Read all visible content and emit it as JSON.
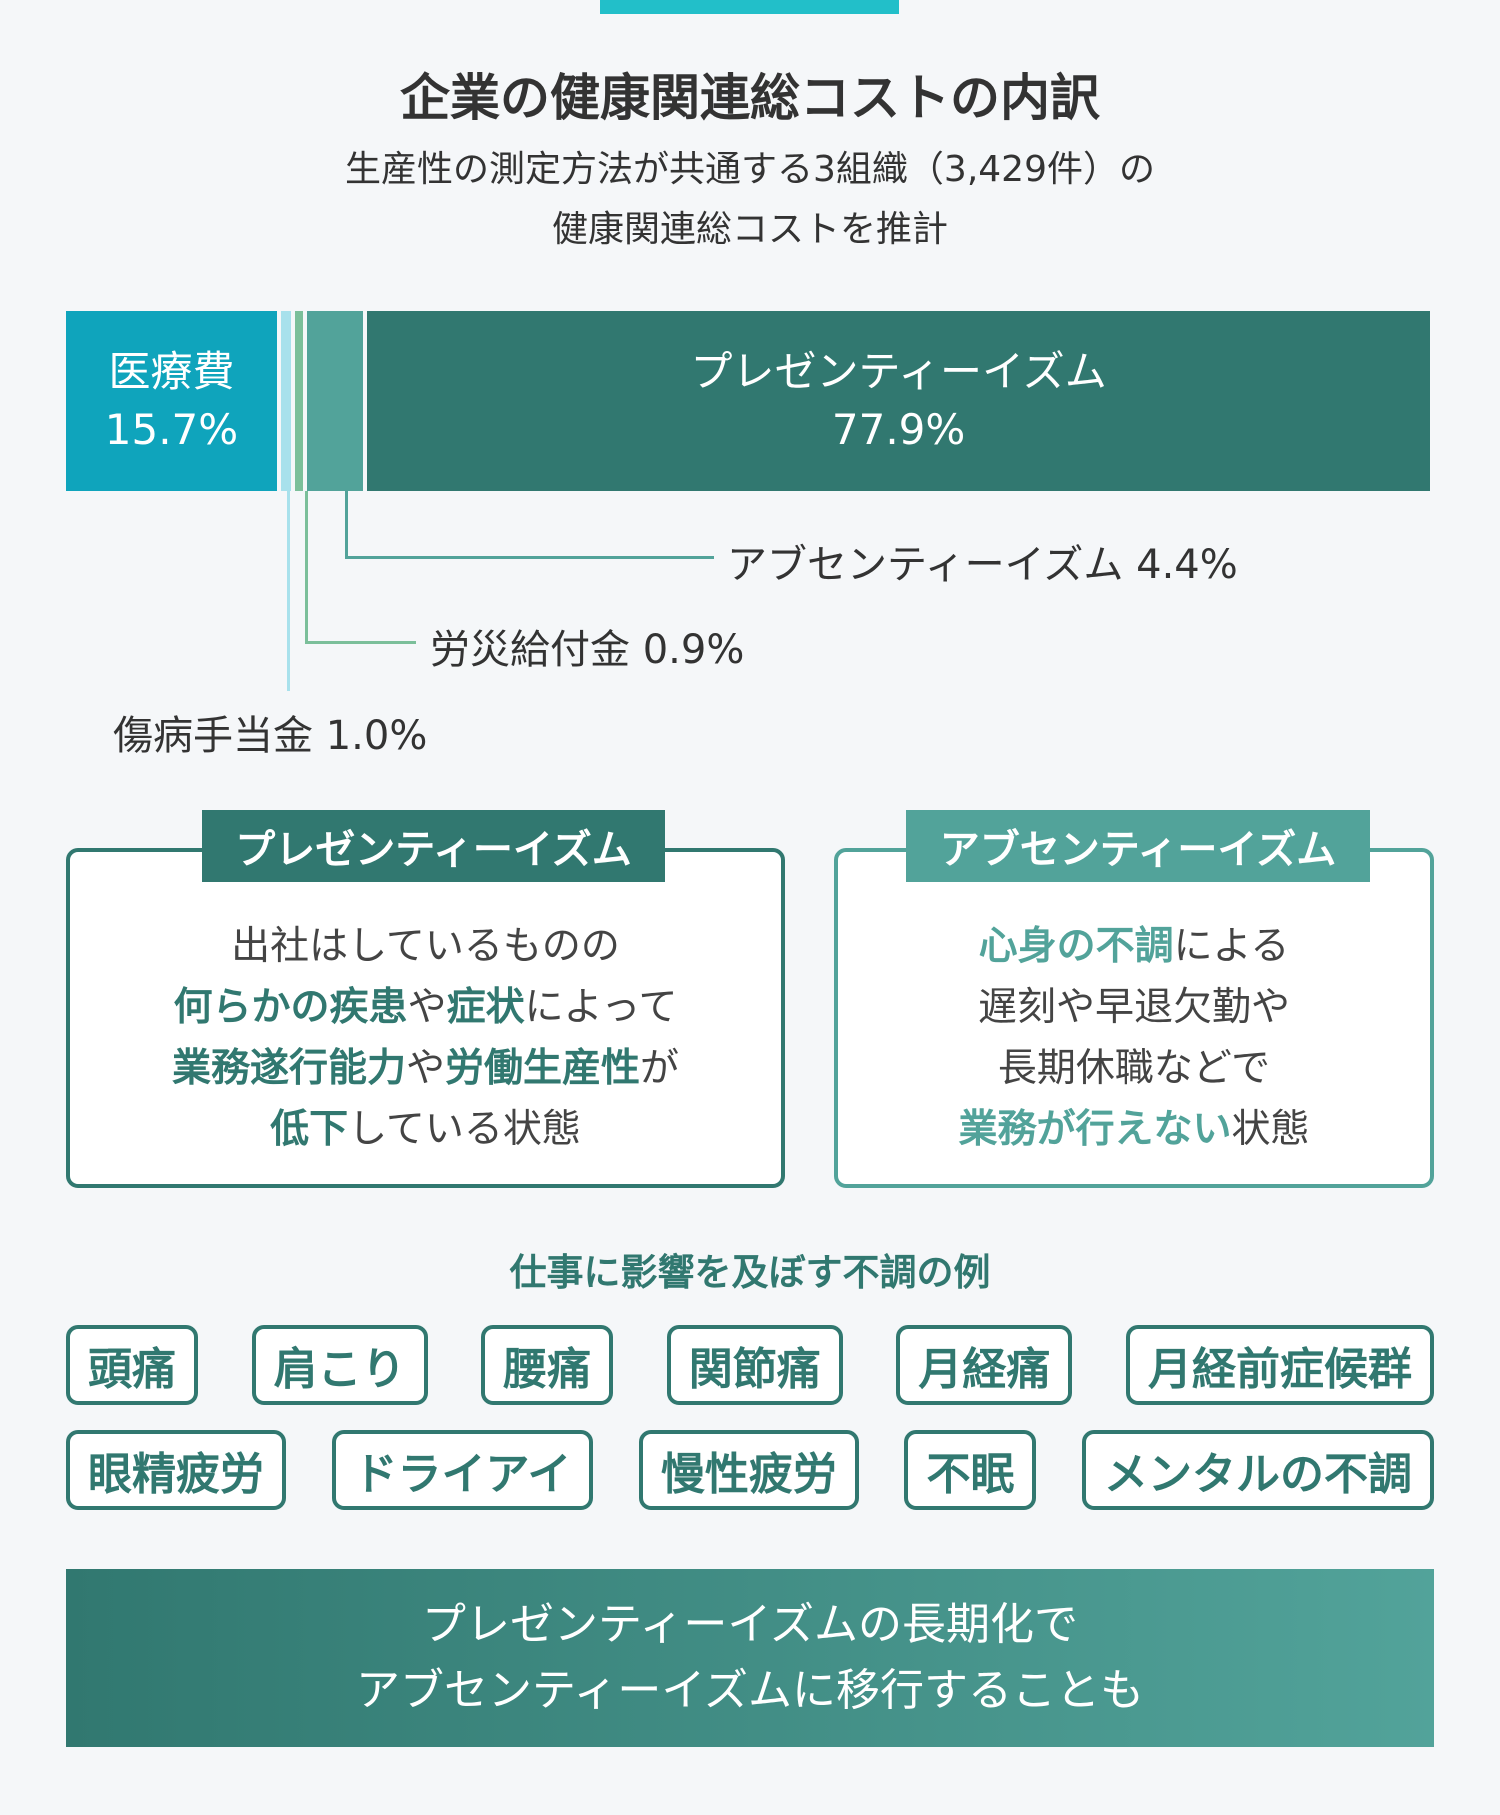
{
  "header": {
    "title": "企業の健康関連総コストの内訳",
    "subtitle_lines": [
      "生産性の測定方法が共通する3組織（3,429件）の",
      "健康関連総コストを推計"
    ]
  },
  "chart_data": {
    "type": "bar",
    "orientation": "horizontal-stacked-100",
    "categories": [
      "医療費",
      "傷病手当金",
      "労災給付金",
      "アブセンティーイズム",
      "プレゼンティーイズム"
    ],
    "values": [
      15.7,
      1.0,
      0.9,
      4.4,
      77.9
    ],
    "unit": "%",
    "labels": [
      "15.7%",
      "1.0%",
      "0.9%",
      "4.4%",
      "77.9%"
    ],
    "colors": [
      "#0fa4bc",
      "#a8e1ec",
      "#7bbf9a",
      "#52a39a",
      "#317870"
    ]
  },
  "callouts": {
    "absenteeism": "アブセンティーイズム 4.4%",
    "workers_comp": "労災給付金 0.9%",
    "sick_allowance": "傷病手当金 1.0%"
  },
  "boxes": {
    "presenteeism": {
      "title": "プレゼンティーイズム",
      "lines": [
        [
          {
            "t": "出社はしているものの",
            "em": false
          }
        ],
        [
          {
            "t": "何らかの疾患",
            "em": true
          },
          {
            "t": "や",
            "em": false
          },
          {
            "t": "症状",
            "em": true
          },
          {
            "t": "によって",
            "em": false
          }
        ],
        [
          {
            "t": "業務遂行能力",
            "em": true
          },
          {
            "t": "や",
            "em": false
          },
          {
            "t": "労働生産性",
            "em": true
          },
          {
            "t": "が",
            "em": false
          }
        ],
        [
          {
            "t": "低下",
            "em": true
          },
          {
            "t": "している状態",
            "em": false
          }
        ]
      ]
    },
    "absenteeism": {
      "title": "アブセンティーイズム",
      "lines": [
        [
          {
            "t": "心身の不調",
            "em": true
          },
          {
            "t": "による",
            "em": false
          }
        ],
        [
          {
            "t": "遅刻や早退欠勤や",
            "em": false
          }
        ],
        [
          {
            "t": "長期休職などで",
            "em": false
          }
        ],
        [
          {
            "t": "業務が行えない",
            "em": true
          },
          {
            "t": "状態",
            "em": false
          }
        ]
      ]
    }
  },
  "examples": {
    "title": "仕事に影響を及ぼす不調の例",
    "row1": [
      "頭痛",
      "肩こり",
      "腰痛",
      "関節痛",
      "月経痛",
      "月経前症候群"
    ],
    "row2": [
      "眼精疲労",
      "ドライアイ",
      "慢性疲労",
      "不眠",
      "メンタルの不調"
    ]
  },
  "banner": {
    "lines": [
      "プレゼンティーイズムの長期化で",
      "アブセンティーイズムに移行することも"
    ]
  },
  "colors": {
    "dark_teal": "#317870",
    "mid_teal": "#52a39a",
    "cyan": "#0fa4bc",
    "accent": "#22bfc9"
  }
}
